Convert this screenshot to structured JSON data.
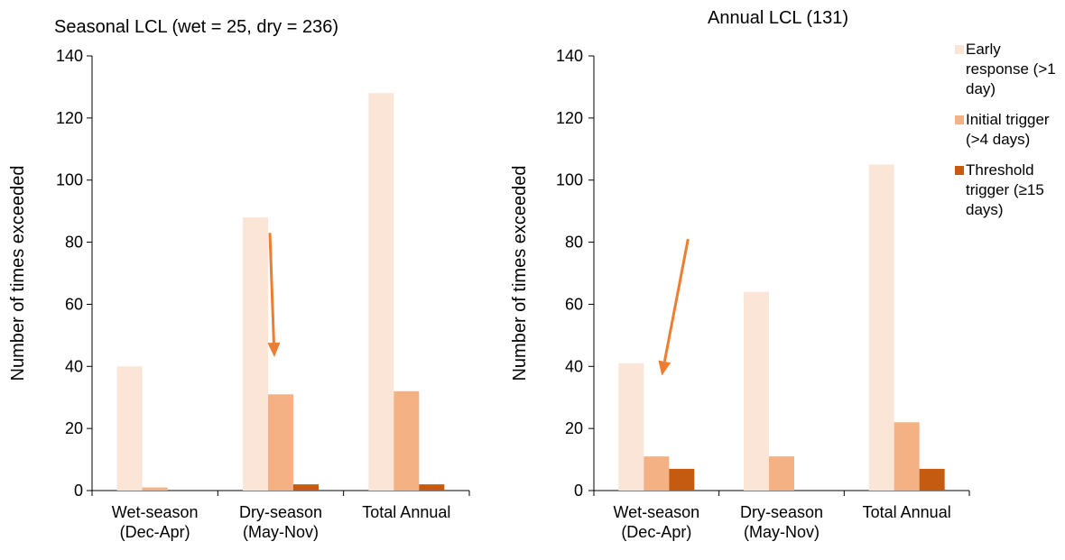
{
  "chart_data": [
    {
      "type": "bar",
      "title": "Seasonal LCL (wet = 25, dry = 236)",
      "ylabel": "Number of times exceeded",
      "xlabel": "",
      "categories": [
        [
          "Wet-season",
          "(Dec-Apr)"
        ],
        [
          "Dry-season",
          "(May-Nov)"
        ],
        [
          "Total Annual"
        ]
      ],
      "series": [
        {
          "name": "Early response (>1 day)",
          "values": [
            40,
            88,
            128
          ]
        },
        {
          "name": "Initial trigger (>4 days)",
          "values": [
            1,
            31,
            32
          ]
        },
        {
          "name": "Threshold trigger (≥15 days)",
          "values": [
            0,
            2,
            2
          ]
        }
      ],
      "ylim": [
        0,
        140
      ],
      "yticks": [
        0,
        20,
        40,
        60,
        80,
        100,
        120,
        140
      ],
      "grid": false,
      "annotation": {
        "type": "arrow",
        "color": "#ED7D31",
        "from": {
          "category": 1,
          "value": 83
        },
        "to": {
          "category": 1,
          "value": 43
        }
      }
    },
    {
      "type": "bar",
      "title": "Annual LCL (131)",
      "ylabel": "Number of times exceeded",
      "xlabel": "",
      "categories": [
        [
          "Wet-season",
          "(Dec-Apr)"
        ],
        [
          "Dry-season",
          "(May-Nov)"
        ],
        [
          "Total Annual"
        ]
      ],
      "series": [
        {
          "name": "Early response (>1 day)",
          "values": [
            41,
            64,
            105
          ]
        },
        {
          "name": "Initial trigger (>4 days)",
          "values": [
            11,
            11,
            22
          ]
        },
        {
          "name": "Threshold trigger (≥15 days)",
          "values": [
            7,
            0,
            7
          ]
        }
      ],
      "ylim": [
        0,
        140
      ],
      "yticks": [
        0,
        20,
        40,
        60,
        80,
        100,
        120,
        140
      ],
      "grid": false,
      "annotation": {
        "type": "arrow",
        "color": "#ED7D31",
        "from": {
          "category": 0,
          "value": 81
        },
        "to": {
          "category": 0,
          "value": 37
        }
      }
    }
  ],
  "legend": {
    "placement": "right",
    "items": [
      {
        "label": "Early response (>1 day)",
        "color": "#FBE5D6"
      },
      {
        "label": "Initial trigger (>4 days)",
        "color": "#F4B183"
      },
      {
        "label": "Threshold trigger (≥15 days)",
        "color": "#C55A11"
      }
    ]
  }
}
